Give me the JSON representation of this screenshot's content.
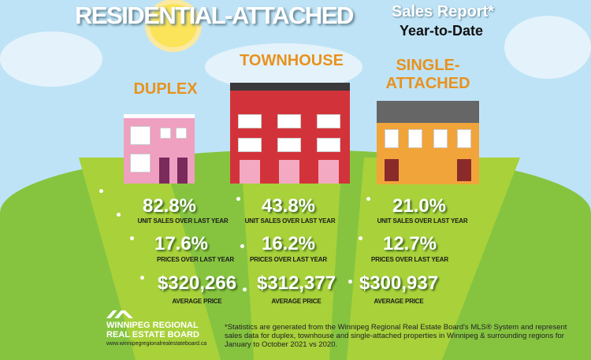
{
  "header": {
    "title": "RESIDENTIAL-ATTACHED",
    "subtitle": "Sales Report*",
    "period": "Year-to-Date"
  },
  "columns": [
    {
      "name": "DUPLEX",
      "unit_sales": "82.8%",
      "unit_sales_label": "UNIT SALES OVER LAST YEAR",
      "prices": "17.6%",
      "prices_label": "PRICES OVER LAST YEAR",
      "avg_price": "$320,266",
      "avg_price_label": "AVERAGE PRICE"
    },
    {
      "name": "TOWNHOUSE",
      "unit_sales": "43.8%",
      "unit_sales_label": "UNIT SALES OVER LAST YEAR",
      "prices": "16.2%",
      "prices_label": "PRICES OVER LAST YEAR",
      "avg_price": "$312,377",
      "avg_price_label": "AVERAGE PRICE"
    },
    {
      "name": "SINGLE-ATTACHED",
      "unit_sales": "21.0%",
      "unit_sales_label": "UNIT SALES OVER LAST YEAR",
      "prices": "12.7%",
      "prices_label": "PRICES OVER LAST YEAR",
      "avg_price": "$300,937",
      "avg_price_label": "AVERAGE PRICE"
    }
  ],
  "footer": {
    "org_line1": "WINNIPEG REGIONAL",
    "org_line2": "REAL ESTATE BOARD",
    "website": "www.winnipegregionalrealestateboard.ca",
    "disclaimer": "*Statistics are generated from the Winnipeg Regional Real Estate Board's MLS® System and represent sales data for duplex, townhouse and single-attached properties in Winnipeg & surrounding regions for January to October 2021 vs 2020."
  },
  "colors": {
    "sky": "#bfe3f6",
    "grass": "#86c440",
    "label": "#e8921e"
  }
}
